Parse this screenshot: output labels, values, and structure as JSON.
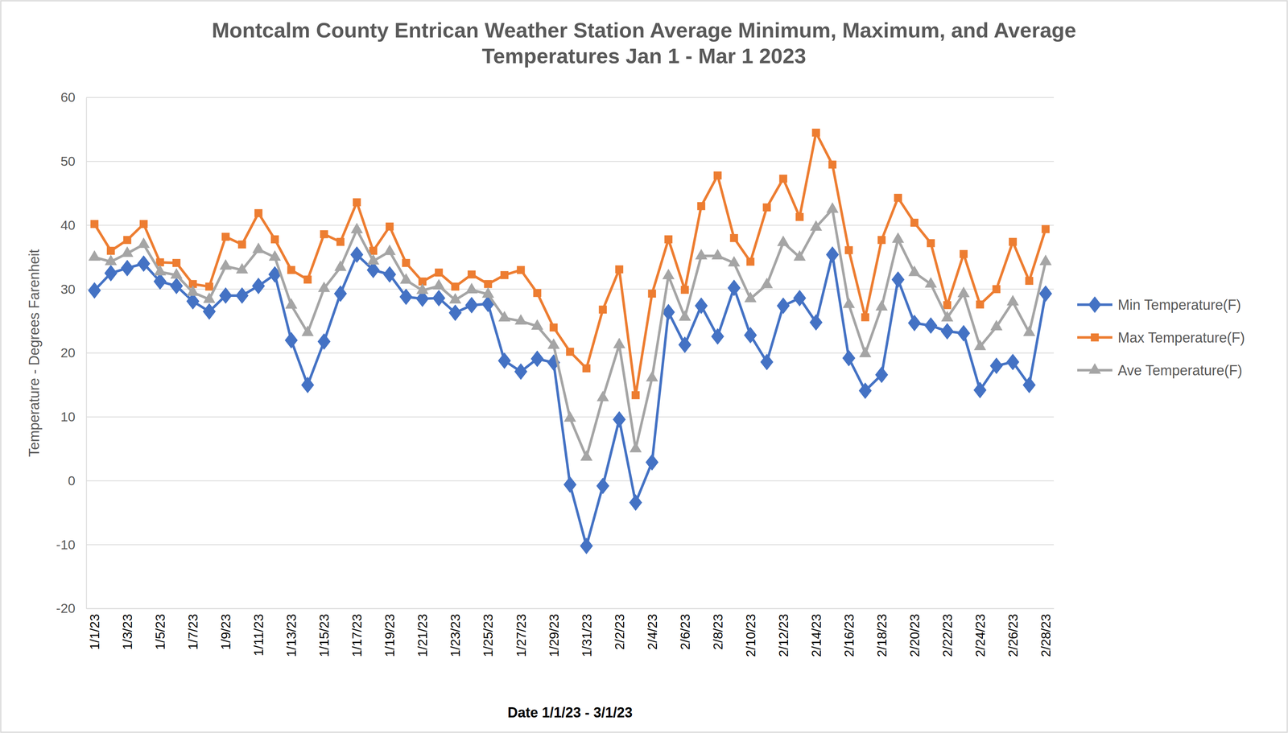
{
  "chart_data": {
    "type": "line",
    "title": "Montcalm County Entrican Weather Station Average Minimum, Maximum, and Average Temperatures Jan 1 - Mar 1 2023",
    "x_label": "Date 1/1/23 - 3/1/23",
    "y_label": "Temperature - Degrees Farenheit",
    "categories": [
      "1/1/23",
      null,
      "1/3/23",
      null,
      "1/5/23",
      null,
      "1/7/23",
      null,
      "1/9/23",
      null,
      "1/11/23",
      null,
      "1/13/23",
      null,
      "1/15/23",
      null,
      "1/17/23",
      null,
      "1/19/23",
      null,
      "1/21/23",
      null,
      "1/23/23",
      null,
      "1/25/23",
      null,
      "1/27/23",
      null,
      "1/29/23",
      null,
      "1/31/23",
      null,
      "2/2/23",
      null,
      "2/4/23",
      null,
      "2/6/23",
      null,
      "2/8/23",
      null,
      "2/10/23",
      null,
      "2/12/23",
      null,
      "2/14/23",
      null,
      "2/16/23",
      null,
      "2/18/23",
      null,
      "2/20/23",
      null,
      "2/22/23",
      null,
      "2/24/23",
      null,
      "2/26/23",
      null,
      "2/28/23"
    ],
    "series": [
      {
        "name": "Min Temperature(F)",
        "color": "#4472c4",
        "marker": "diamond",
        "values": [
          29.8,
          32.5,
          33.3,
          34.0,
          31.2,
          30.5,
          28.1,
          26.5,
          29.0,
          29.0,
          30.5,
          32.3,
          22.0,
          15.0,
          21.8,
          29.3,
          35.4,
          33.0,
          32.3,
          28.8,
          28.5,
          28.6,
          26.3,
          27.5,
          27.7,
          18.8,
          17.1,
          19.1,
          18.5,
          -0.6,
          -10.2,
          -0.8,
          9.6,
          -3.4,
          2.9,
          26.4,
          21.3,
          27.4,
          22.6,
          30.2,
          22.8,
          18.6,
          27.4,
          28.6,
          24.8,
          35.4,
          19.2,
          14.1,
          16.6,
          31.5,
          24.7,
          24.3,
          23.4,
          23.1,
          14.2,
          18.0,
          18.6,
          15.0,
          29.3
        ]
      },
      {
        "name": "Max Temperature(F)",
        "color": "#ed7d31",
        "marker": "square",
        "values": [
          40.2,
          36.0,
          37.7,
          40.2,
          34.2,
          34.1,
          30.8,
          30.4,
          38.2,
          37.0,
          41.9,
          37.8,
          33.0,
          31.5,
          38.6,
          37.4,
          43.6,
          36.0,
          39.8,
          34.1,
          31.2,
          32.6,
          30.4,
          32.3,
          30.8,
          32.2,
          33.0,
          29.4,
          24.0,
          20.2,
          17.6,
          26.8,
          33.1,
          13.4,
          29.3,
          37.8,
          29.9,
          43.0,
          47.8,
          38.0,
          34.3,
          42.8,
          47.3,
          41.3,
          54.5,
          49.5,
          36.1,
          25.6,
          37.7,
          44.3,
          40.4,
          37.2,
          27.5,
          35.5,
          27.6,
          30.0,
          37.4,
          31.3,
          39.4
        ]
      },
      {
        "name": "Ave Temperature(F)",
        "color": "#a5a5a5",
        "marker": "triangle",
        "values": [
          35.0,
          34.3,
          35.6,
          37.0,
          32.7,
          32.2,
          29.5,
          28.4,
          33.6,
          33.0,
          36.2,
          35.0,
          27.5,
          23.2,
          30.1,
          33.4,
          39.3,
          34.4,
          35.9,
          31.4,
          29.8,
          30.5,
          28.3,
          29.9,
          29.2,
          25.5,
          25.0,
          24.2,
          21.2,
          9.8,
          3.7,
          13.0,
          21.3,
          5.0,
          16.1,
          32.1,
          25.6,
          35.2,
          35.2,
          34.1,
          28.5,
          30.7,
          37.3,
          35.0,
          39.7,
          42.5,
          27.6,
          19.9,
          27.2,
          37.8,
          32.6,
          30.8,
          25.5,
          29.3,
          21.0,
          24.1,
          28.0,
          23.2,
          34.3
        ]
      }
    ],
    "ylim": [
      -20,
      60
    ],
    "yticks": [
      -20,
      -10,
      0,
      10,
      20,
      30,
      40,
      50,
      60
    ],
    "grid": true,
    "legend": "right"
  }
}
